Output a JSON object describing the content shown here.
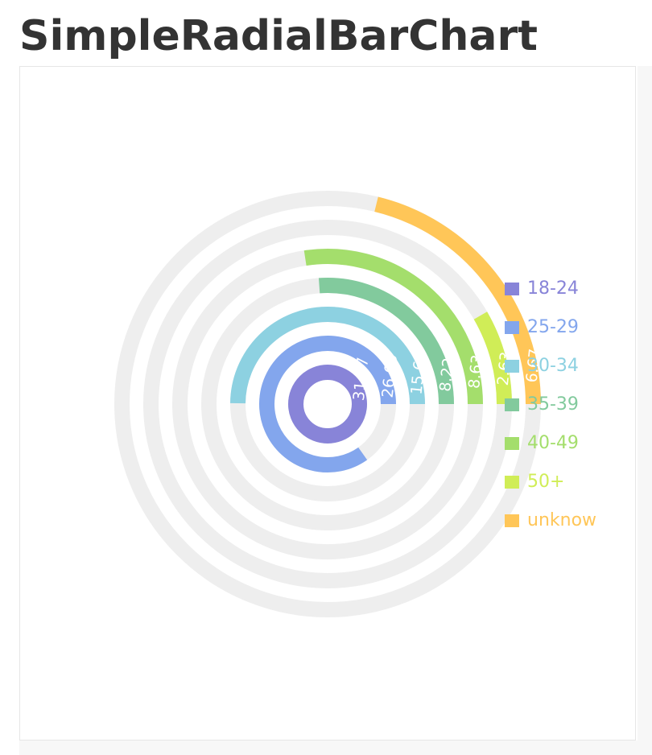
{
  "page": {
    "title": "SimpleRadialBarChart"
  },
  "chart_data": {
    "type": "radial-bar",
    "series": [
      {
        "name": "18-24",
        "value": 31.47,
        "color": "#8884d8"
      },
      {
        "name": "25-29",
        "value": 26.69,
        "color": "#83a6ed"
      },
      {
        "name": "30-34",
        "value": 15.69,
        "color": "#8dd1e1"
      },
      {
        "name": "35-39",
        "value": 8.22,
        "color": "#82ca9d"
      },
      {
        "name": "40-49",
        "value": 8.63,
        "color": "#a4de6c"
      },
      {
        "name": "50+",
        "value": 2.63,
        "color": "#d0ed57"
      },
      {
        "name": "unknow",
        "value": 6.67,
        "color": "#ffc658"
      }
    ],
    "background_color": "#eeeeee",
    "legend": "right-middle"
  }
}
